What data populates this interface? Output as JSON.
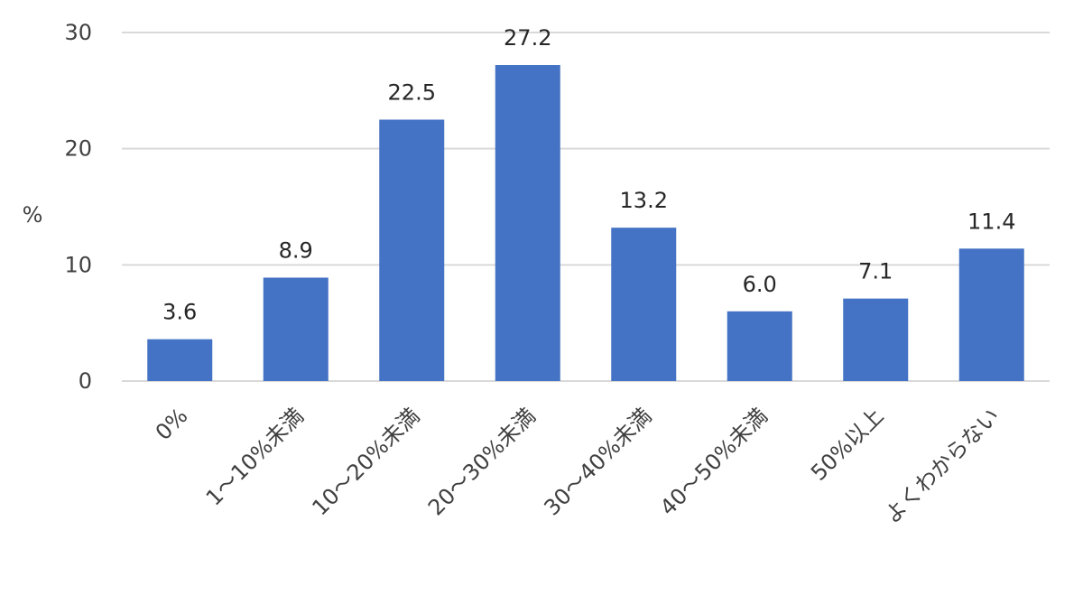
{
  "chart_data": {
    "type": "bar",
    "categories": [
      "0%",
      "1～10%未満",
      "10～20%未満",
      "20～30%未満",
      "30～40%未満",
      "40～50%未満",
      "50%以上",
      "よくわからない"
    ],
    "values": [
      3.6,
      8.9,
      22.5,
      27.2,
      13.2,
      6.0,
      7.1,
      11.4
    ],
    "value_labels": [
      "3.6",
      "8.9",
      "22.5",
      "27.2",
      "13.2",
      "6.0",
      "7.1",
      "11.4"
    ],
    "title": "",
    "xlabel": "",
    "ylabel": "%",
    "ylim": [
      0,
      30
    ],
    "yticks": [
      0,
      10,
      20,
      30
    ],
    "ytick_labels": [
      "0",
      "10",
      "20",
      "30"
    ],
    "grid": true,
    "legend": "none",
    "colors": {
      "bar": "#4472C4",
      "grid": "#D9D9D9",
      "text": "#404040",
      "axis": "#D9D9D9"
    }
  }
}
